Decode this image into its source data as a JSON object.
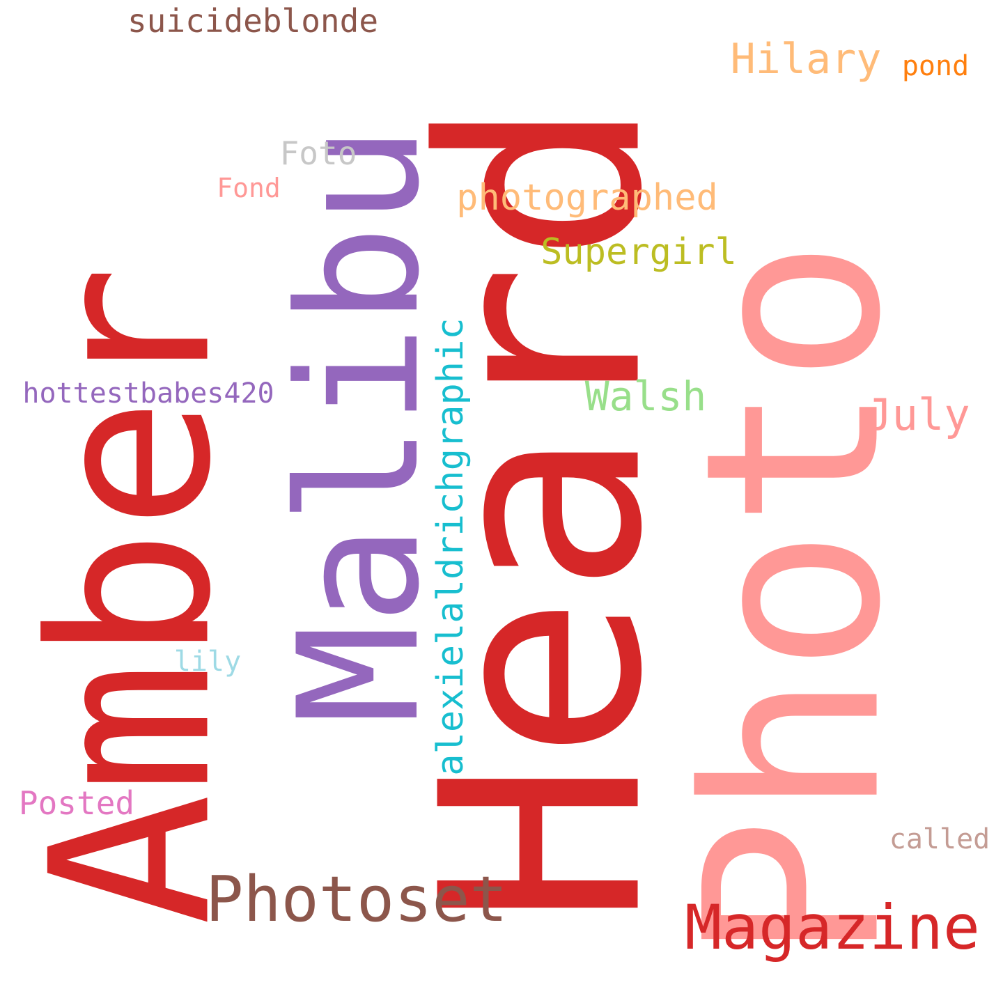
{
  "words": {
    "amber": {
      "text": "Amber",
      "color": "#d62728",
      "orientation": "vertical"
    },
    "heard": {
      "text": "Heard",
      "color": "#d62728",
      "orientation": "vertical"
    },
    "photo": {
      "text": "Photo",
      "color": "#ff9896",
      "orientation": "vertical"
    },
    "malibu": {
      "text": "Malibu",
      "color": "#9467bd",
      "orientation": "vertical"
    },
    "alexielaldrichgraphic": {
      "text": "alexielaldrichgraphic",
      "color": "#17becf",
      "orientation": "vertical"
    },
    "photoset": {
      "text": "Photoset",
      "color": "#8c564b",
      "orientation": "horizontal"
    },
    "magazine": {
      "text": "Magazine",
      "color": "#d62728",
      "orientation": "horizontal"
    },
    "suicideblonde": {
      "text": "suicideblonde",
      "color": "#8c564b",
      "orientation": "horizontal"
    },
    "hilary": {
      "text": "Hilary",
      "color": "#ffbb78",
      "orientation": "horizontal"
    },
    "pond": {
      "text": "pond",
      "color": "#ff7f0e",
      "orientation": "horizontal"
    },
    "foto": {
      "text": "Foto",
      "color": "#c7c7c7",
      "orientation": "horizontal"
    },
    "fond": {
      "text": "Fond",
      "color": "#ff9896",
      "orientation": "horizontal"
    },
    "photographed": {
      "text": "photographed",
      "color": "#ffbb78",
      "orientation": "horizontal"
    },
    "supergirl": {
      "text": "Supergirl",
      "color": "#bcbd22",
      "orientation": "horizontal"
    },
    "walsh": {
      "text": "Walsh",
      "color": "#98df8a",
      "orientation": "horizontal"
    },
    "july": {
      "text": "July",
      "color": "#ff9896",
      "orientation": "horizontal"
    },
    "hottestbabes420": {
      "text": "hottestbabes420",
      "color": "#9467bd",
      "orientation": "horizontal"
    },
    "lily": {
      "text": "lily",
      "color": "#9edae5",
      "orientation": "horizontal"
    },
    "posted": {
      "text": "Posted",
      "color": "#e377c2",
      "orientation": "horizontal"
    },
    "called": {
      "text": "called",
      "color": "#c49c94",
      "orientation": "horizontal"
    }
  }
}
